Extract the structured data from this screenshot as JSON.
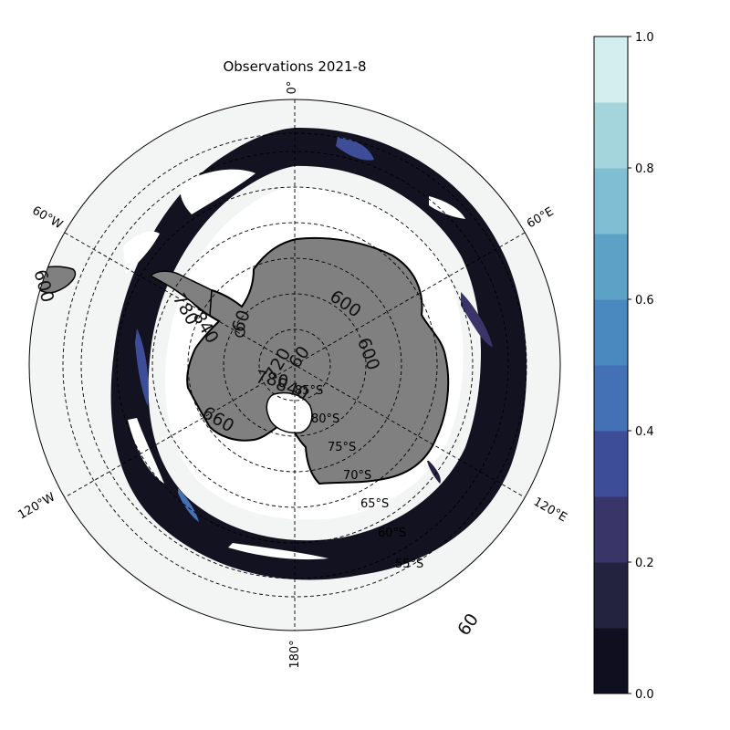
{
  "title": "Observations 2021-8",
  "longitude_labels": {
    "deg0": "0°",
    "e60": "60°E",
    "e120": "120°E",
    "deg180": "180°",
    "w120": "120°W",
    "w60": "60°W"
  },
  "latitude_labels": [
    "85°S",
    "80°S",
    "75°S",
    "70°S",
    "65°S",
    "60°S",
    "55°S"
  ],
  "contour_labels": {
    "a": "600",
    "b": "600",
    "c": "60",
    "d": "720",
    "e": "780",
    "f": "840",
    "g": "660",
    "h": "780",
    "i": "840",
    "j": "60",
    "k": "600",
    "l": "60"
  },
  "colorbar": {
    "min": 0.0,
    "max": 1.0,
    "tick_labels": [
      "0.0",
      "0.2",
      "0.4",
      "0.6",
      "0.8",
      "1.0"
    ],
    "levels": 10,
    "colors": [
      "#0f0f1f",
      "#23223f",
      "#393568",
      "#3d4d98",
      "#4470b5",
      "#4a89c0",
      "#5ea1c7",
      "#7fbed3",
      "#a4d5dc",
      "#d4eef0"
    ]
  },
  "colors": {
    "ocean": "#f3f5f4",
    "land": "#808080",
    "coast": "#000000",
    "grid": "#000000"
  }
}
